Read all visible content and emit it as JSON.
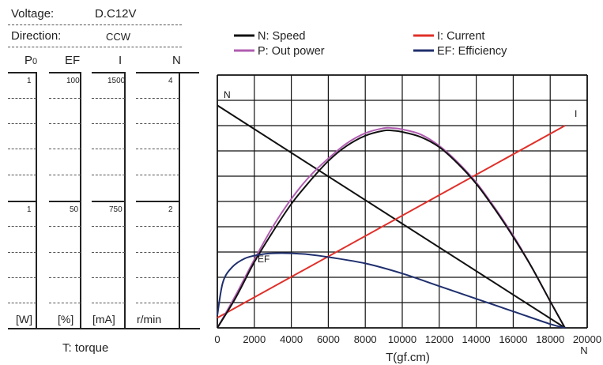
{
  "spec": {
    "voltage_label": "Voltage:",
    "voltage_value": "D.C12V",
    "direction_label": "Direction:",
    "direction_value": "CCW"
  },
  "columns": {
    "headers": [
      "P0",
      "EF",
      "I",
      "N"
    ],
    "top_values": [
      "1",
      "100",
      "1500",
      "4"
    ],
    "mid_values": [
      "1",
      "50",
      "750",
      "2"
    ],
    "units": [
      "[W]",
      "[%]",
      "[mA]",
      "r/min"
    ]
  },
  "left_caption": "T: torque",
  "legend": [
    {
      "label": "N: Speed",
      "color": "#111111"
    },
    {
      "label": "P: Out power",
      "color": "#b05cb0"
    },
    {
      "label": "I: Current",
      "color": "#e0302a"
    },
    {
      "label": "EF: Efficiency",
      "color": "#1f2f6e"
    }
  ],
  "chart_data": {
    "type": "line",
    "xlabel": "T(gf.cm)",
    "x_unit_label": "N",
    "x_ticks": [
      0,
      2000,
      4000,
      6000,
      8000,
      10000,
      12000,
      14000,
      16000,
      18000,
      20000
    ],
    "x_tick_labels": [
      "0",
      "2000",
      "4000",
      "6000",
      "8000",
      "10000",
      "12000",
      "14000",
      "16000",
      "18000",
      "20000"
    ],
    "xlim": [
      0,
      20000
    ],
    "ylim": [
      0,
      100
    ],
    "grid": true,
    "curve_labels": {
      "speed": "N",
      "current": "I",
      "efficiency": "EF"
    },
    "series": [
      {
        "name": "N: Speed",
        "key": "speed",
        "color": "#111111",
        "x": [
          0,
          18800
        ],
        "y": [
          88,
          0
        ]
      },
      {
        "name": "I: Current",
        "key": "current",
        "color": "#e0302a",
        "x": [
          0,
          18800
        ],
        "y": [
          4,
          80
        ]
      },
      {
        "name": "P: Out power",
        "key": "power",
        "color": "#b05cb0",
        "x": [
          0,
          1000,
          2000,
          3000,
          4000,
          5000,
          6000,
          7000,
          8000,
          9000,
          9500,
          10000,
          11000,
          12000,
          13000,
          14000,
          15000,
          16000,
          17000,
          18000,
          18800
        ],
        "y": [
          0,
          13,
          27,
          40,
          51,
          60,
          67,
          73,
          77,
          79,
          79,
          78.5,
          76.5,
          72,
          65.5,
          57.5,
          47.5,
          36.5,
          24,
          10.5,
          0
        ]
      },
      {
        "name": "N: Speed (output curve)",
        "key": "speed_out",
        "color": "#111111",
        "x": [
          0,
          1000,
          2000,
          3000,
          4000,
          5000,
          6000,
          7000,
          8000,
          9000,
          9500,
          10000,
          11000,
          12000,
          13000,
          14000,
          15000,
          16000,
          17000,
          18000,
          18800
        ],
        "y": [
          0,
          12,
          26,
          38,
          49,
          58,
          66,
          72,
          76,
          78,
          78,
          77.5,
          75.5,
          71.5,
          65,
          57,
          47,
          36,
          24,
          10.5,
          0
        ]
      },
      {
        "name": "EF: Efficiency",
        "key": "efficiency",
        "color": "#1f2f6e",
        "x": [
          0,
          300,
          800,
          1500,
          2300,
          3000,
          4000,
          5000,
          6000,
          8000,
          10000,
          12000,
          14000,
          16000,
          18000,
          18800
        ],
        "y": [
          5,
          18,
          24,
          27.5,
          29,
          29.5,
          29.5,
          29,
          28,
          25.5,
          21.5,
          16.5,
          11.5,
          6.5,
          1.5,
          0
        ]
      }
    ]
  }
}
